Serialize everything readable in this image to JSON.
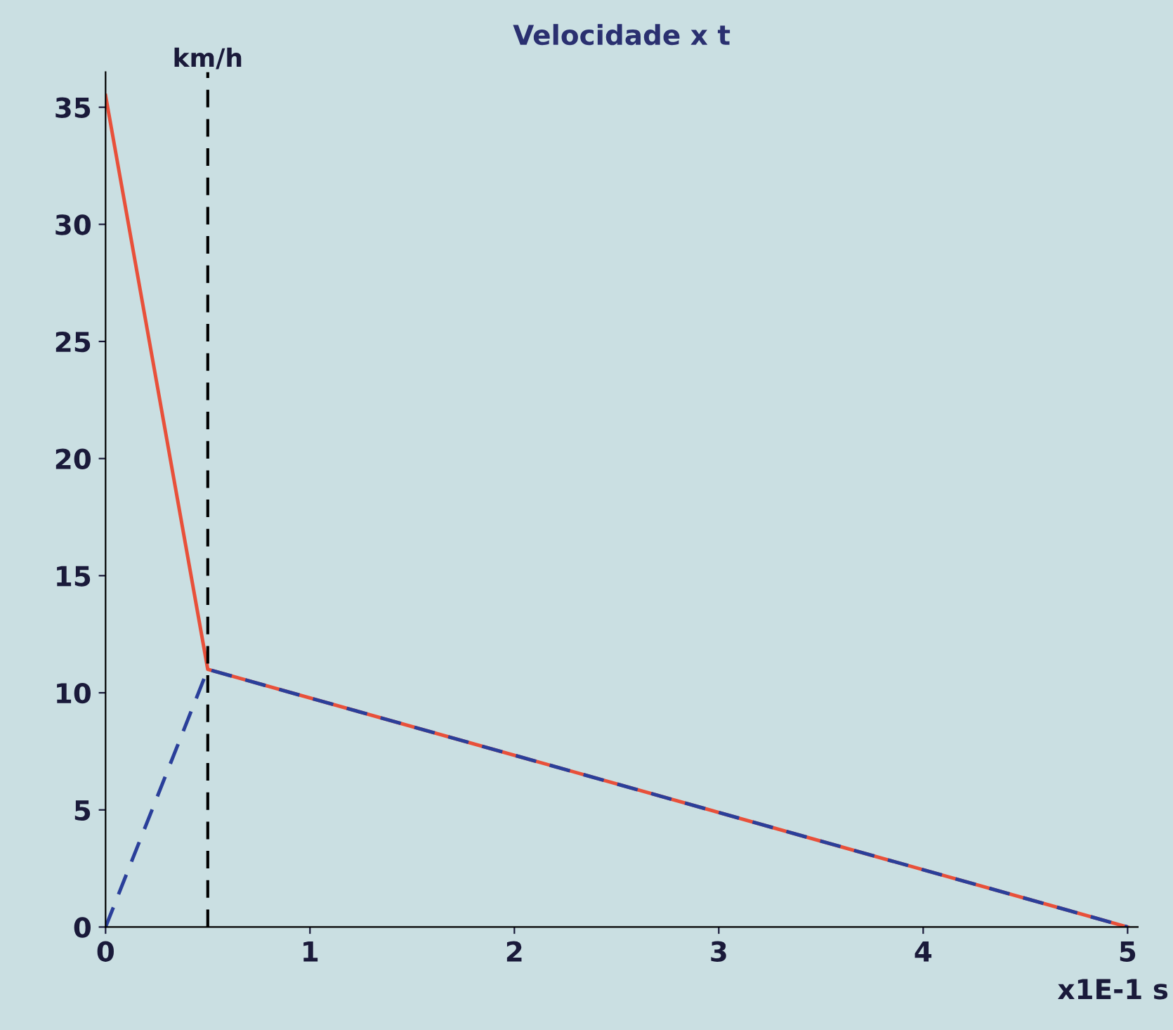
{
  "chart_data": {
    "type": "line",
    "title": "Velocidade x t",
    "ylabel": "km/h",
    "xlabel": "x1E-1 s",
    "series": [
      {
        "color": "#e8503a",
        "x": [
          0,
          0.5,
          5
        ],
        "values": [
          35.5,
          11,
          0
        ],
        "line_style": "solid"
      },
      {
        "color": "#2a3f9a",
        "x": [
          0,
          0.5,
          5
        ],
        "values": [
          0,
          11,
          0
        ],
        "line_style": "dashed"
      }
    ],
    "xlim": [
      0,
      5.05
    ],
    "ylim": [
      0,
      36.5
    ],
    "xticks": [
      0,
      1,
      2,
      3,
      4,
      5
    ],
    "yticks": [
      0,
      5,
      10,
      15,
      20,
      25,
      30,
      35
    ],
    "ref_lines": [
      {
        "axis": "x",
        "value": 0.5,
        "color": "#000000",
        "line_style": "dashed"
      }
    ],
    "grid": false,
    "legend": false
  }
}
